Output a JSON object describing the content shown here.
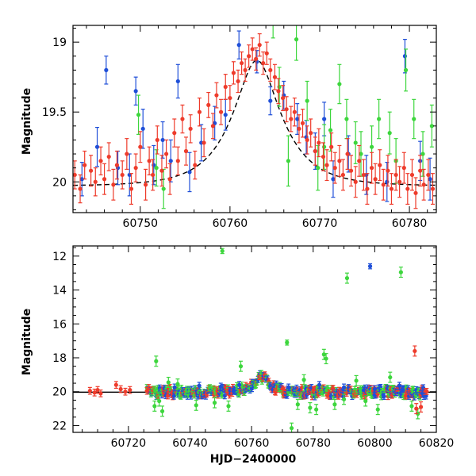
{
  "colors": {
    "blue": "#1f4fd8",
    "red": "#ee3b2b",
    "green": "#3dd63d",
    "model": "#000000",
    "axes": "#000000"
  },
  "chart_data": [
    {
      "id": "top",
      "type": "scatter",
      "xlabel": "",
      "ylabel": "Magnitude",
      "xlim": [
        60742.5,
        60783
      ],
      "ylim": [
        20.22,
        18.88
      ],
      "y_inverted": true,
      "xticks": [
        60750,
        60760,
        60770,
        60780
      ],
      "xtick_labels": [
        "60750",
        "60760",
        "60770",
        "60780"
      ],
      "yticks": [
        19,
        19.5,
        20
      ],
      "ytick_labels": [
        "19",
        "19.5",
        "20"
      ],
      "model": {
        "type": "microlensing_curve",
        "baseline": 20.03,
        "peak_mag": 19.13,
        "t0": 60763,
        "tE": 5
      },
      "series": [
        {
          "color_key": "blue",
          "points": [
            [
              60743.5,
              19.98,
              0.12
            ],
            [
              60745.2,
              19.75,
              0.14
            ],
            [
              60746.2,
              19.2,
              0.1
            ],
            [
              60747.5,
              19.9,
              0.12
            ],
            [
              60748.8,
              19.95,
              0.15
            ],
            [
              60749.5,
              19.35,
              0.1
            ],
            [
              60750.3,
              19.62,
              0.14
            ],
            [
              60751.5,
              19.88,
              0.14
            ],
            [
              60752.5,
              19.7,
              0.13
            ],
            [
              60753.4,
              19.85,
              0.15
            ],
            [
              60754.2,
              19.28,
              0.12
            ],
            [
              60755.5,
              19.93,
              0.14
            ],
            [
              60756.8,
              19.72,
              0.13
            ],
            [
              60758.3,
              19.58,
              0.12
            ],
            [
              60759.5,
              19.52,
              0.11
            ],
            [
              60761.0,
              19.02,
              0.1
            ],
            [
              60763.0,
              19.14,
              0.08
            ],
            [
              60764.5,
              19.42,
              0.1
            ],
            [
              60766.0,
              19.38,
              0.1
            ],
            [
              60767.5,
              19.55,
              0.11
            ],
            [
              60768.5,
              19.68,
              0.12
            ],
            [
              60769.5,
              19.78,
              0.13
            ],
            [
              60770.5,
              19.55,
              0.12
            ],
            [
              60771.5,
              19.98,
              0.13
            ],
            [
              60773.2,
              19.8,
              0.13
            ],
            [
              60775.2,
              19.95,
              0.14
            ],
            [
              60777.5,
              20.0,
              0.14
            ],
            [
              60779.5,
              19.1,
              0.12
            ],
            [
              60781.2,
              19.85,
              0.14
            ],
            [
              60782.3,
              19.98,
              0.15
            ]
          ]
        },
        {
          "color_key": "green",
          "points": [
            [
              60749.8,
              19.52,
              0.14
            ],
            [
              60751.8,
              19.9,
              0.13
            ],
            [
              60752.6,
              20.05,
              0.14
            ],
            [
              60764.8,
              18.85,
              0.12
            ],
            [
              60765.5,
              19.32,
              0.14
            ],
            [
              60766.5,
              19.85,
              0.18
            ],
            [
              60767.4,
              18.98,
              0.15
            ],
            [
              60768.6,
              19.42,
              0.14
            ],
            [
              60769.8,
              19.9,
              0.16
            ],
            [
              60770.5,
              19.75,
              0.16
            ],
            [
              60771.2,
              19.63,
              0.15
            ],
            [
              60772.2,
              19.3,
              0.14
            ],
            [
              60773.0,
              19.55,
              0.14
            ],
            [
              60774.0,
              19.72,
              0.15
            ],
            [
              60774.6,
              19.8,
              0.16
            ],
            [
              60775.8,
              19.75,
              0.15
            ],
            [
              60776.6,
              19.55,
              0.14
            ],
            [
              60777.8,
              19.65,
              0.15
            ],
            [
              60778.5,
              19.85,
              0.16
            ],
            [
              60779.6,
              19.2,
              0.15
            ],
            [
              60780.5,
              19.55,
              0.14
            ],
            [
              60781.5,
              19.8,
              0.16
            ],
            [
              60782.5,
              19.6,
              0.15
            ]
          ]
        },
        {
          "color_key": "red",
          "points": [
            [
              60742.7,
              19.95,
              0.1
            ],
            [
              60743.3,
              20.05,
              0.1
            ],
            [
              60743.8,
              19.88,
              0.1
            ],
            [
              60744.5,
              19.92,
              0.11
            ],
            [
              60745.0,
              20.0,
              0.1
            ],
            [
              60745.6,
              19.85,
              0.1
            ],
            [
              60746.0,
              19.98,
              0.11
            ],
            [
              60746.5,
              19.82,
              0.1
            ],
            [
              60747.0,
              20.02,
              0.11
            ],
            [
              60747.4,
              19.88,
              0.1
            ],
            [
              60748.0,
              19.95,
              0.1
            ],
            [
              60748.5,
              19.8,
              0.11
            ],
            [
              60749.0,
              20.05,
              0.11
            ],
            [
              60749.5,
              19.9,
              0.1
            ],
            [
              60750.0,
              19.75,
              0.11
            ],
            [
              60750.6,
              20.02,
              0.11
            ],
            [
              60751.0,
              19.85,
              0.1
            ],
            [
              60751.4,
              19.95,
              0.11
            ],
            [
              60751.9,
              19.7,
              0.1
            ],
            [
              60752.4,
              19.92,
              0.11
            ],
            [
              60752.9,
              19.8,
              0.1
            ],
            [
              60753.3,
              19.98,
              0.11
            ],
            [
              60753.8,
              19.65,
              0.1
            ],
            [
              60754.2,
              19.85,
              0.1
            ],
            [
              60754.7,
              19.55,
              0.1
            ],
            [
              60755.1,
              19.78,
              0.1
            ],
            [
              60755.6,
              19.62,
              0.1
            ],
            [
              60756.1,
              19.88,
              0.1
            ],
            [
              60756.6,
              19.5,
              0.1
            ],
            [
              60757.1,
              19.72,
              0.1
            ],
            [
              60757.6,
              19.45,
              0.09
            ],
            [
              60758.1,
              19.6,
              0.09
            ],
            [
              60758.5,
              19.38,
              0.09
            ],
            [
              60759.0,
              19.5,
              0.09
            ],
            [
              60759.5,
              19.32,
              0.09
            ],
            [
              60760.0,
              19.4,
              0.09
            ],
            [
              60760.4,
              19.22,
              0.08
            ],
            [
              60760.9,
              19.28,
              0.08
            ],
            [
              60761.3,
              19.15,
              0.08
            ],
            [
              60761.7,
              19.2,
              0.08
            ],
            [
              60762.1,
              19.1,
              0.08
            ],
            [
              60762.5,
              19.05,
              0.08
            ],
            [
              60762.9,
              19.12,
              0.08
            ],
            [
              60763.3,
              19.02,
              0.08
            ],
            [
              60763.7,
              19.15,
              0.08
            ],
            [
              60764.1,
              19.08,
              0.08
            ],
            [
              60764.5,
              19.2,
              0.08
            ],
            [
              60765.0,
              19.25,
              0.09
            ],
            [
              60765.4,
              19.35,
              0.09
            ],
            [
              60765.9,
              19.4,
              0.09
            ],
            [
              60766.3,
              19.48,
              0.09
            ],
            [
              60766.8,
              19.55,
              0.09
            ],
            [
              60767.2,
              19.5,
              0.1
            ],
            [
              60767.7,
              19.62,
              0.1
            ],
            [
              60768.1,
              19.58,
              0.1
            ],
            [
              60768.6,
              19.7,
              0.1
            ],
            [
              60769.0,
              19.65,
              0.1
            ],
            [
              60769.5,
              19.78,
              0.1
            ],
            [
              60769.9,
              19.72,
              0.1
            ],
            [
              60770.4,
              19.82,
              0.1
            ],
            [
              60770.8,
              19.88,
              0.11
            ],
            [
              60771.3,
              19.75,
              0.1
            ],
            [
              60771.7,
              19.9,
              0.11
            ],
            [
              60772.2,
              19.85,
              0.11
            ],
            [
              60772.6,
              19.95,
              0.11
            ],
            [
              60773.1,
              19.8,
              0.11
            ],
            [
              60773.5,
              19.92,
              0.11
            ],
            [
              60774.0,
              20.0,
              0.11
            ],
            [
              60774.4,
              19.85,
              0.11
            ],
            [
              60774.9,
              19.95,
              0.11
            ],
            [
              60775.3,
              20.05,
              0.11
            ],
            [
              60775.8,
              19.9,
              0.11
            ],
            [
              60776.2,
              19.98,
              0.11
            ],
            [
              60776.7,
              19.88,
              0.11
            ],
            [
              60777.1,
              20.02,
              0.11
            ],
            [
              60777.6,
              19.92,
              0.11
            ],
            [
              60778.0,
              20.05,
              0.11
            ],
            [
              60778.5,
              19.95,
              0.11
            ],
            [
              60778.9,
              20.0,
              0.11
            ],
            [
              60779.4,
              19.9,
              0.11
            ],
            [
              60779.8,
              20.05,
              0.11
            ],
            [
              60780.3,
              19.95,
              0.11
            ],
            [
              60780.7,
              20.08,
              0.11
            ],
            [
              60781.2,
              19.92,
              0.11
            ],
            [
              60781.6,
              20.02,
              0.11
            ],
            [
              60782.1,
              19.95,
              0.11
            ],
            [
              60782.6,
              20.05,
              0.11
            ]
          ]
        }
      ]
    },
    {
      "id": "bottom",
      "type": "scatter",
      "xlabel": "HJD−2400000",
      "ylabel": "Magnitude",
      "xlim": [
        60702,
        60820
      ],
      "ylim": [
        22.4,
        11.4
      ],
      "y_inverted": true,
      "xticks": [
        60720,
        60740,
        60760,
        60780,
        60800,
        60820
      ],
      "xtick_labels": [
        "60720",
        "60740",
        "60760",
        "60780",
        "60800",
        "60820"
      ],
      "yticks": [
        12,
        14,
        16,
        18,
        20,
        22
      ],
      "ytick_labels": [
        "12",
        "14",
        "16",
        "18",
        "20",
        "22"
      ],
      "model": {
        "type": "microlensing_curve",
        "baseline": 20.03,
        "peak_mag": 19.13,
        "t0": 60763,
        "tE": 5
      },
      "dense_band": {
        "x_start": 60726,
        "x_end": 60817,
        "scatter": 0.28
      },
      "series": [
        {
          "color_key": "blue",
          "points": [
            [
              60798.5,
              12.6,
              0.15
            ],
            [
              60735,
              19.75,
              0.2
            ],
            [
              60743,
              19.65,
              0.2
            ],
            [
              60750,
              19.7,
              0.2
            ],
            [
              60756,
              19.6,
              0.2
            ],
            [
              60772,
              19.75,
              0.2
            ],
            [
              60782,
              19.6,
              0.2
            ],
            [
              60790,
              19.75,
              0.2
            ],
            [
              60800,
              19.85,
              0.2
            ],
            [
              60808,
              19.65,
              0.2
            ]
          ]
        },
        {
          "color_key": "green",
          "points": [
            [
              60750.5,
              11.7,
              0.15
            ],
            [
              60771.5,
              17.1,
              0.15
            ],
            [
              60791.0,
              13.3,
              0.3
            ],
            [
              60808.5,
              12.95,
              0.3
            ],
            [
              60756.5,
              18.5,
              0.3
            ],
            [
              60783.5,
              17.8,
              0.3
            ],
            [
              60784.2,
              18.05,
              0.3
            ],
            [
              60729,
              18.2,
              0.3
            ],
            [
              60730,
              20.55,
              0.3
            ],
            [
              60731,
              21.15,
              0.3
            ],
            [
              60728.5,
              20.85,
              0.3
            ],
            [
              60733,
              19.45,
              0.3
            ],
            [
              60736,
              19.55,
              0.3
            ],
            [
              60742,
              20.8,
              0.3
            ],
            [
              60748,
              20.65,
              0.3
            ],
            [
              60752.5,
              20.85,
              0.3
            ],
            [
              60773,
              22.15,
              0.3
            ],
            [
              60775,
              20.75,
              0.3
            ],
            [
              60779,
              20.95,
              0.3
            ],
            [
              60781,
              21.05,
              0.3
            ],
            [
              60787,
              20.75,
              0.3
            ],
            [
              60794,
              19.35,
              0.3
            ],
            [
              60797,
              20.55,
              0.3
            ],
            [
              60801,
              21.05,
              0.3
            ],
            [
              60805,
              19.15,
              0.3
            ],
            [
              60812,
              20.85,
              0.3
            ],
            [
              60814,
              21.3,
              0.3
            ],
            [
              60777,
              19.3,
              0.3
            ],
            [
              60790,
              20.45,
              0.3
            ]
          ]
        },
        {
          "color_key": "red",
          "points": [
            [
              60707.5,
              19.95,
              0.2
            ],
            [
              60709,
              20.05,
              0.2
            ],
            [
              60710,
              19.9,
              0.2
            ],
            [
              60711,
              20.1,
              0.2
            ],
            [
              60716,
              19.6,
              0.2
            ],
            [
              60717.5,
              19.85,
              0.2
            ],
            [
              60719,
              20.0,
              0.2
            ],
            [
              60720.5,
              19.9,
              0.2
            ],
            [
              60726,
              19.95,
              0.2
            ],
            [
              60813,
              17.6,
              0.3
            ],
            [
              60815,
              20.9,
              0.3
            ],
            [
              60813.5,
              21.0,
              0.3
            ]
          ]
        }
      ]
    }
  ]
}
